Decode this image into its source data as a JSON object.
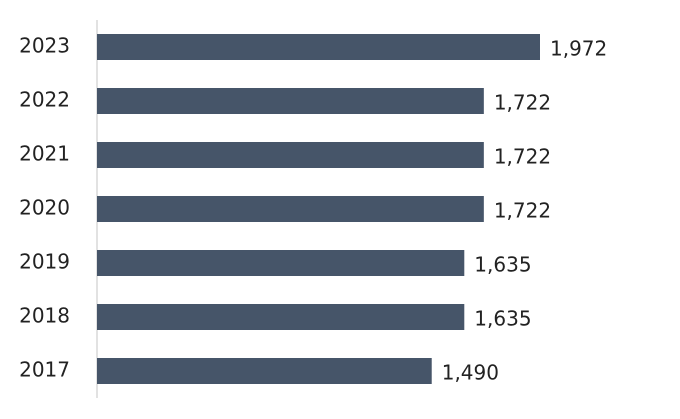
{
  "chart_data": {
    "type": "bar",
    "orientation": "horizontal",
    "categories": [
      "2023",
      "2022",
      "2021",
      "2020",
      "2019",
      "2018",
      "2017"
    ],
    "values": [
      1972,
      1722,
      1722,
      1722,
      1635,
      1635,
      1490
    ],
    "value_labels": [
      "1,972",
      "1,722",
      "1,722",
      "1,722",
      "1,635",
      "1,635",
      "1,490"
    ],
    "color": "#465569"
  }
}
